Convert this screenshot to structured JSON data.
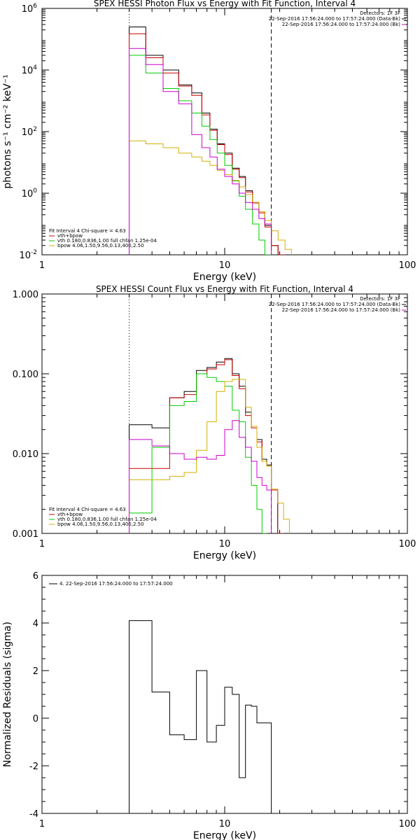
{
  "colors": {
    "total": "#000000",
    "fit_total": "#cc0000",
    "vth": "#00cc00",
    "bpow": "#d4b000",
    "bk": "#cc00cc"
  },
  "chart_data": [
    {
      "type": "line",
      "title": "SPEX HESSI Photon Flux vs Energy with Fit Function, Interval 4",
      "xlabel": "Energy (keV)",
      "ylabel": "photons s⁻¹ cm⁻² keV⁻¹",
      "xscale": "log",
      "yscale": "log",
      "xlim": [
        1,
        100
      ],
      "ylim": [
        0.01,
        1000000
      ],
      "xticks": [
        {
          "v": 1,
          "label": "1"
        },
        {
          "v": 10,
          "label": "10"
        },
        {
          "v": 100,
          "label": "100"
        }
      ],
      "yticks": [
        {
          "v": 0.01,
          "base": "10",
          "exp": "-2"
        },
        {
          "v": 1,
          "base": "10",
          "exp": "0"
        },
        {
          "v": 100,
          "base": "10",
          "exp": "2"
        },
        {
          "v": 10000,
          "base": "10",
          "exp": "4"
        },
        {
          "v": 1000000,
          "base": "10",
          "exp": "6"
        }
      ],
      "vlines": [
        {
          "x": 3.0,
          "style": "dotted"
        },
        {
          "x": 18.0,
          "style": "dashed"
        }
      ],
      "info_right": [
        "Detectors: 1F 3F",
        "22-Sep-2016 17:56:24.000 to 17:57:24.000 (Data-Bk)",
        "22-Sep-2016 17:56:24.000 to 17:57:24.000 (Bk)"
      ],
      "legend": [
        "Fit Interval 4   Chi-square = 4.63",
        "vth+bpow",
        "vth 0.180,0.836,1.00  full chfan 1.25e-04",
        "bpow 4.06,1.50,9.56,0.13,400,2.50"
      ],
      "edges": [
        3,
        3.7,
        4.6,
        5.6,
        6.6,
        7.5,
        8.3,
        9.1,
        10,
        11,
        12,
        13,
        14.2,
        15.4,
        16.6,
        18,
        19.6,
        21.4,
        23.2
      ],
      "series": [
        {
          "key": "total",
          "values": [
            250000,
            30000,
            10000,
            3300,
            1800,
            400,
            120,
            40,
            20,
            6.5,
            3.5,
            1.2,
            0.5,
            0.25,
            0.09,
            0.02,
            0.01,
            null
          ]
        },
        {
          "key": "fit_total",
          "values": [
            150000,
            25000,
            8000,
            3000,
            1500,
            350,
            110,
            38,
            18,
            6,
            3.2,
            1.1,
            0.48,
            0.23,
            0.08,
            0.02,
            0.01,
            null
          ]
        },
        {
          "key": "vth",
          "values": [
            30000,
            8000,
            2500,
            1000,
            400,
            150,
            55,
            20,
            8,
            2.5,
            0.8,
            0.3,
            0.1,
            0.03,
            0.01,
            null,
            null,
            null
          ]
        },
        {
          "key": "bpow",
          "values": [
            50,
            40,
            30,
            20,
            15,
            11,
            8,
            5.5,
            4,
            2.6,
            1.6,
            0.9,
            0.5,
            0.25,
            0.13,
            0.06,
            0.03,
            0.015
          ]
        },
        {
          "key": "bk",
          "values": [
            50000,
            15000,
            2000,
            800,
            80,
            30,
            15,
            6,
            3.5,
            2,
            1,
            0.5,
            0.3,
            0.15,
            0.1,
            null,
            null,
            null
          ]
        }
      ]
    },
    {
      "type": "line",
      "title": "SPEX HESSI Count Flux vs Energy with Fit Function, Interval 4",
      "xlabel": "Energy (keV)",
      "ylabel": "",
      "xscale": "log",
      "yscale": "log",
      "xlim": [
        1,
        100
      ],
      "ylim": [
        0.001,
        1
      ],
      "xticks": [
        {
          "v": 1,
          "label": "1"
        },
        {
          "v": 10,
          "label": "10"
        },
        {
          "v": 100,
          "label": "100"
        }
      ],
      "yticks": [
        {
          "v": 0.001,
          "label": "0.001"
        },
        {
          "v": 0.01,
          "label": "0.010"
        },
        {
          "v": 0.1,
          "label": "0.100"
        },
        {
          "v": 1,
          "label": "1.000"
        }
      ],
      "vlines": [
        {
          "x": 3.0,
          "style": "dotted"
        },
        {
          "x": 18.0,
          "style": "dashed"
        }
      ],
      "info_right": [
        "Detectors: 1F 3F",
        "22-Sep-2016 17:56:24.000 to 17:57:24.000 (Data-Bk)",
        "22-Sep-2016 17:56:24.000 to 17:57:24.000 (Bk)"
      ],
      "legend": [
        "Fit Interval 4   Chi-square = 4.63",
        "vth+bpow",
        "vth 0.180,0.836,1.00  full chfan 1.25e-04",
        "bpow 4.06,1.50,9.56,0.13,400,2.50"
      ],
      "edges": [
        3,
        4,
        5,
        6,
        7,
        8,
        9,
        10,
        11,
        12,
        13,
        14,
        15,
        16,
        17,
        18,
        19.5,
        21,
        22.6
      ],
      "series": [
        {
          "key": "total",
          "values": [
            0.023,
            0.021,
            0.05,
            0.06,
            0.11,
            0.12,
            0.14,
            0.155,
            0.1,
            0.07,
            0.033,
            0.022,
            0.015,
            0.0085,
            0.0072,
            0.0035,
            0.001,
            null
          ]
        },
        {
          "key": "fit_total",
          "values": [
            0.0065,
            0.0065,
            0.05,
            0.055,
            0.1,
            0.115,
            0.13,
            0.15,
            0.095,
            0.065,
            0.03,
            0.021,
            0.014,
            0.008,
            0.007,
            0.0035,
            0.001,
            null
          ]
        },
        {
          "key": "vth",
          "values": [
            0.0018,
            0.012,
            0.04,
            0.045,
            0.1,
            0.09,
            0.08,
            0.07,
            0.035,
            0.025,
            0.009,
            0.004,
            0.002,
            0.001,
            null,
            null,
            null,
            null
          ]
        },
        {
          "key": "bpow",
          "values": [
            0.0047,
            0.0047,
            0.0052,
            0.0058,
            0.011,
            0.025,
            0.06,
            0.08,
            0.085,
            0.085,
            0.038,
            0.022,
            0.012,
            0.008,
            0.007,
            0.0036,
            0.0024,
            0.0015
          ]
        },
        {
          "key": "bk",
          "values": [
            0.015,
            0.0125,
            0.01,
            0.0085,
            0.009,
            0.0085,
            0.0095,
            0.02,
            0.026,
            0.016,
            0.012,
            0.008,
            0.005,
            0.004,
            0.0035,
            null,
            null,
            null
          ]
        }
      ]
    },
    {
      "type": "line",
      "title": "",
      "xlabel": "Energy (keV)",
      "ylabel": "Normalized Residuals (sigma)",
      "xscale": "log",
      "yscale": "linear",
      "xlim": [
        1,
        100
      ],
      "ylim": [
        -4,
        6
      ],
      "xticks": [
        {
          "v": 1,
          "label": "1"
        },
        {
          "v": 10,
          "label": "10"
        },
        {
          "v": 100,
          "label": "100"
        }
      ],
      "yticks": [
        {
          "v": -4,
          "label": "-4"
        },
        {
          "v": -2,
          "label": "-2"
        },
        {
          "v": 0,
          "label": "0"
        },
        {
          "v": 2,
          "label": "2"
        },
        {
          "v": 4,
          "label": "4"
        },
        {
          "v": 6,
          "label": "6"
        }
      ],
      "legend": [
        "4. 22-Sep-2016 17:56:24.000 to 17:57:24.000"
      ],
      "edges": [
        3,
        4,
        5,
        6,
        7,
        8,
        9,
        10,
        11,
        12,
        13,
        14,
        15,
        16,
        17,
        18
      ],
      "series": [
        {
          "key": "total",
          "values": [
            4.1,
            1.1,
            -0.7,
            -0.9,
            2.0,
            -1.0,
            -0.3,
            1.3,
            1.0,
            -2.5,
            0.55,
            0.5,
            -0.2,
            -0.2,
            -0.2
          ]
        }
      ]
    }
  ]
}
